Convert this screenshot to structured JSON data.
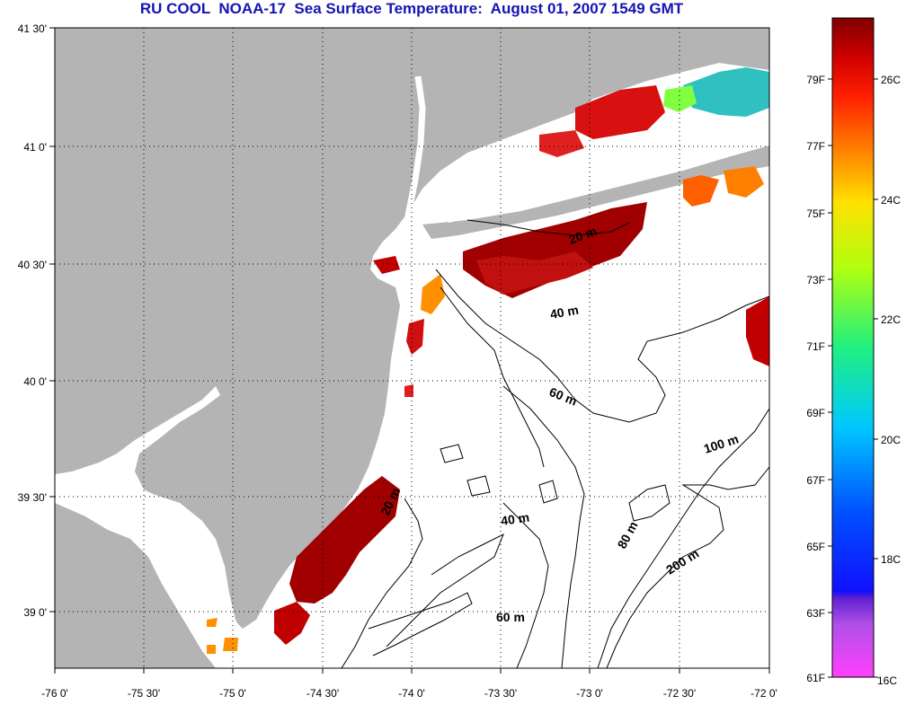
{
  "title": "RU COOL  NOAA-17  Sea Surface Temperature:  August 01, 2007 1549 GMT",
  "lat_ticks": [
    "41 30'",
    "41 0'",
    "40 30'",
    "40 0'",
    "39 30'",
    "39 0'"
  ],
  "lon_ticks": [
    "-76 0'",
    "-75 30'",
    "-75 0'",
    "-74 30'",
    "-74 0'",
    "-73 30'",
    "-73 0'",
    "-72 30'",
    "-72 0'"
  ],
  "depth_labels": [
    {
      "id": "20m-north",
      "text": "20 m"
    },
    {
      "id": "40m-north",
      "text": "40 m"
    },
    {
      "id": "60m-mid",
      "text": "60 m"
    },
    {
      "id": "100m",
      "text": "100 m"
    },
    {
      "id": "20m-south",
      "text": "20 m"
    },
    {
      "id": "40m-south",
      "text": "40 m"
    },
    {
      "id": "80m",
      "text": "80 m"
    },
    {
      "id": "200m",
      "text": "200 m"
    },
    {
      "id": "60m-south",
      "text": "60 m"
    }
  ],
  "colorbar": {
    "fahrenheit_labels": [
      "79F",
      "77F",
      "75F",
      "73F",
      "71F",
      "69F",
      "67F",
      "65F",
      "63F",
      "61F"
    ],
    "celsius_labels": [
      "26C",
      "24C",
      "22C",
      "20C",
      "18C",
      "16C"
    ]
  },
  "colors": {
    "land": "#b4b4b4",
    "ocean": "#ffffff",
    "title": "#1414b4",
    "sst_warm": "#a00000",
    "sst_red": "#d81010",
    "sst_orange": "#ff8000"
  }
}
